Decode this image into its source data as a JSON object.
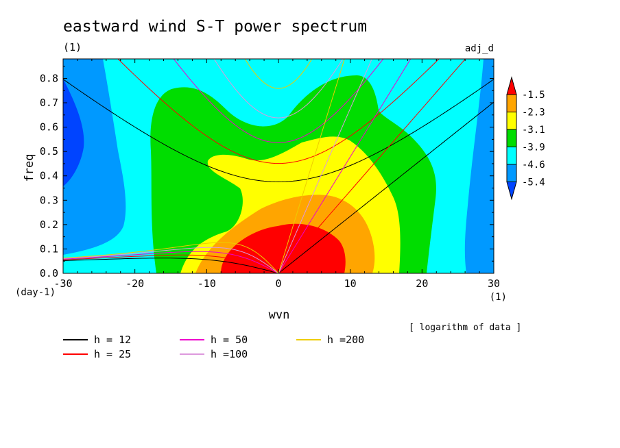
{
  "chart_data": {
    "type": "heatmap",
    "title": "eastward wind S-T power spectrum",
    "subtitle_left": "(1)",
    "subtitle_right": "adj_d",
    "xlabel": "wvn",
    "ylabel": "freq",
    "x_unit": "(1)",
    "y_unit": "(day-1)",
    "xlim": [
      -30,
      30
    ],
    "ylim": [
      0,
      0.88
    ],
    "x_ticks": [
      -30,
      -20,
      -10,
      0,
      10,
      20,
      30
    ],
    "x_tick_labels": [
      "-30",
      "-20",
      "-10",
      "0",
      "10",
      "20",
      "30"
    ],
    "y_ticks": [
      0.0,
      0.1,
      0.2,
      0.3,
      0.4,
      0.5,
      0.6,
      0.7,
      0.8
    ],
    "y_tick_labels": [
      "0.0",
      "0.1",
      "0.2",
      "0.3",
      "0.4",
      "0.5",
      "0.6",
      "0.7",
      "0.8"
    ],
    "note": "[ logarithm of data ]",
    "colorbar": {
      "levels": [
        -1.5,
        -2.3,
        -3.1,
        -3.9,
        -4.6,
        -5.4
      ],
      "level_labels": [
        "-1.5",
        "-2.3",
        "-3.1",
        "-3.9",
        "-4.6",
        "-5.4"
      ],
      "colors": [
        "#ff0000",
        "#ffa500",
        "#ffff00",
        "#00dd00",
        "#00ffff",
        "#0099ff",
        "#0044ff"
      ]
    },
    "dispersion_curves": [
      {
        "label": "h = 12",
        "h": 12,
        "color": "#000000"
      },
      {
        "label": "h = 25",
        "h": 25,
        "color": "#ff0000"
      },
      {
        "label": "h = 50",
        "h": 50,
        "color": "#ee00cc"
      },
      {
        "label": "h =100",
        "h": 100,
        "color": "#dd99dd"
      },
      {
        "label": "h =200",
        "h": 200,
        "color": "#eecc00"
      }
    ]
  }
}
